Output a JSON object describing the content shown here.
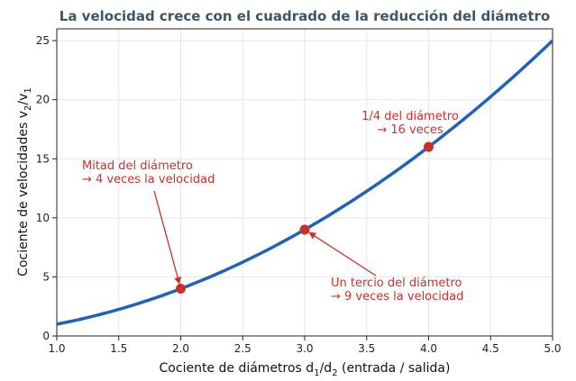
{
  "chart_data": {
    "type": "line",
    "title": "La velocidad crece con el cuadrado de la reducción del diámetro",
    "xlabel": {
      "pre": "Cociente de diámetros d",
      "sub1": "1",
      "mid": "/d",
      "sub2": "2",
      "post": " (entrada / salida)"
    },
    "ylabel": {
      "pre": "Cociente de velocidades v",
      "sub1": "2",
      "mid": "/v",
      "sub2": "1"
    },
    "xlim": [
      1.0,
      5.0
    ],
    "ylim": [
      0,
      26
    ],
    "xticks": [
      "1.0",
      "1.5",
      "2.0",
      "2.5",
      "3.0",
      "3.5",
      "4.0",
      "4.5",
      "5.0"
    ],
    "yticks": [
      "0",
      "5",
      "10",
      "15",
      "20",
      "25"
    ],
    "grid": true,
    "series": [
      {
        "function": "y = x^2",
        "x_range": [
          1.0,
          5.0
        ],
        "color": "#1f63b8"
      }
    ],
    "points": [
      {
        "x": 2,
        "y": 4
      },
      {
        "x": 3,
        "y": 9
      },
      {
        "x": 4,
        "y": 16
      }
    ],
    "annotations": [
      {
        "lines": [
          "Mitad del diámetro",
          "→ 4 veces la velocidad"
        ],
        "target_x": 2,
        "target_y": 4,
        "arrow": true
      },
      {
        "lines": [
          "Un tercio del diámetro",
          "→ 9 veces la velocidad"
        ],
        "target_x": 3,
        "target_y": 9,
        "arrow": true
      },
      {
        "lines": [
          "1/4 del diámetro",
          "→ 16 veces"
        ],
        "target_x": 4,
        "target_y": 16,
        "arrow": false
      }
    ],
    "colors": {
      "line": "#1f63b8",
      "marker": "#c9302c",
      "annotation": "#c9302c",
      "title": "#3f5566"
    }
  }
}
